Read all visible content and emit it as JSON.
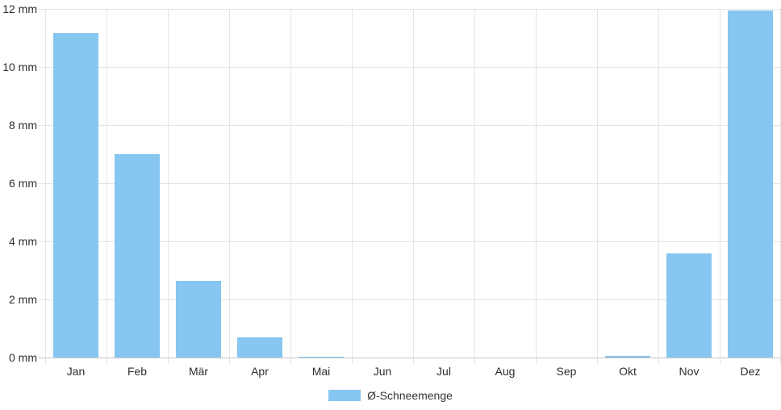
{
  "chart_data": {
    "type": "bar",
    "title": "",
    "categories": [
      "Jan",
      "Feb",
      "Mär",
      "Apr",
      "Mai",
      "Jun",
      "Jul",
      "Aug",
      "Sep",
      "Okt",
      "Nov",
      "Dez"
    ],
    "series": [
      {
        "name": "Ø-Schneemenge",
        "values": [
          11.17,
          7.0,
          2.65,
          0.69,
          0.03,
          0,
          0,
          0,
          0,
          0.06,
          3.58,
          11.94
        ],
        "color": "#87C6F0"
      }
    ],
    "xlabel": "",
    "ylabel": "",
    "unit": "mm",
    "ylim": [
      0,
      12
    ],
    "y_tick_step": 2,
    "y_tick_labels": [
      "0 mm",
      "2 mm",
      "4 mm",
      "6 mm",
      "8 mm",
      "10 mm",
      "12 mm"
    ],
    "grid": true,
    "legend_position": "bottom"
  },
  "legend": {
    "items": [
      {
        "label": "Ø-Schneemenge",
        "color": "#87C6F0"
      }
    ]
  },
  "colors": {
    "bar": "#87C6F0",
    "grid": "#E4E4E4",
    "zero_line": "#C6C6C6",
    "axis_text": "#2E2E2E",
    "background": "#FFFFFF"
  }
}
